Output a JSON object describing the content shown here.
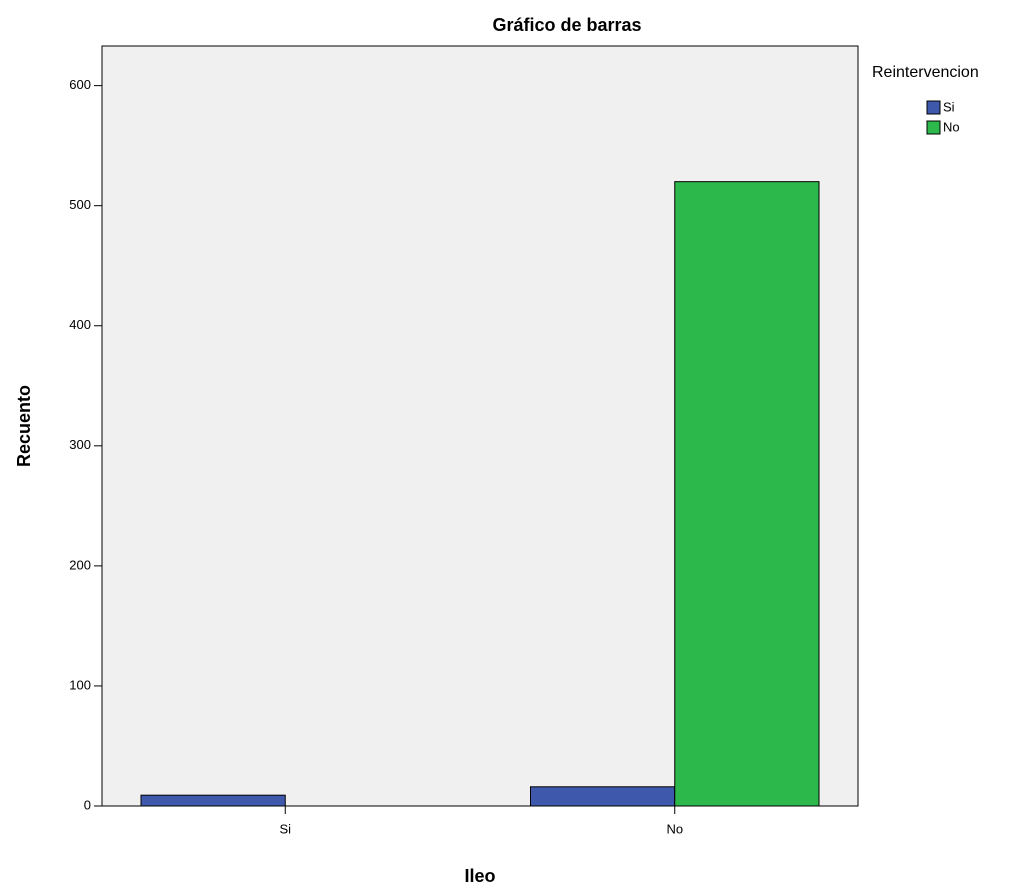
{
  "chart_data": {
    "type": "bar",
    "title": "Gráfico de barras",
    "x_label": "Ileo",
    "y_label": "Recuento",
    "legend_title": "Reintervencion",
    "categories": [
      "Si",
      "No"
    ],
    "series": [
      {
        "name": "Si",
        "color": "#3e58ac",
        "values": [
          9,
          16
        ]
      },
      {
        "name": "No",
        "color": "#2db84b",
        "values": [
          0,
          520
        ]
      }
    ],
    "ylim": [
      0,
      633
    ],
    "yticks": [
      0,
      100,
      200,
      300,
      400,
      500,
      600
    ],
    "grid": false,
    "legend": "right"
  }
}
